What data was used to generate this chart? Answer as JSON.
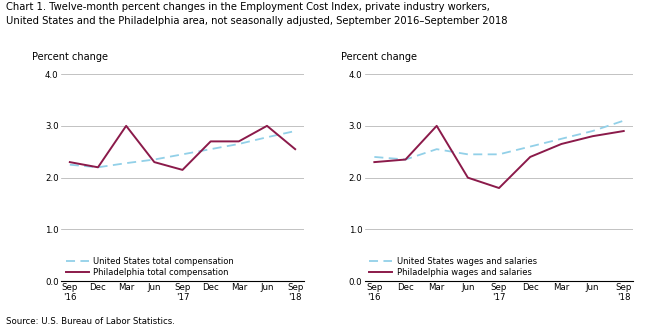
{
  "title_line1": "Chart 1. Twelve-month percent changes in the Employment Cost Index, private industry workers,",
  "title_line2": "United States and the Philadelphia area, not seasonally adjusted, September 2016–September 2018",
  "source": "Source: U.S. Bureau of Labor Statistics.",
  "ylabel": "Percent change",
  "xlabels": [
    "Sep\n'16",
    "Dec",
    "Mar",
    "Jun",
    "Sep\n'17",
    "Dec",
    "Mar",
    "Jun",
    "Sep\n'18"
  ],
  "ylim": [
    0.0,
    4.0
  ],
  "yticks": [
    0.0,
    1.0,
    2.0,
    3.0,
    4.0
  ],
  "left_panel": {
    "us_total_comp": [
      2.25,
      2.2,
      2.28,
      2.35,
      2.45,
      2.55,
      2.65,
      2.78,
      2.9
    ],
    "phila_total_comp": [
      2.3,
      2.2,
      3.0,
      2.3,
      2.15,
      2.7,
      2.7,
      3.0,
      2.55
    ],
    "us_label": "United States total compensation",
    "phila_label": "Philadelphia total compensation"
  },
  "right_panel": {
    "us_wages_salaries": [
      2.4,
      2.35,
      2.55,
      2.45,
      2.45,
      2.6,
      2.75,
      2.9,
      3.1
    ],
    "phila_wages_salaries": [
      2.3,
      2.35,
      3.0,
      2.0,
      1.8,
      2.4,
      2.65,
      2.8,
      2.9
    ],
    "us_label": "United States wages and salaries",
    "phila_label": "Philadelphia wages and salaries"
  },
  "us_color": "#92D0E8",
  "phila_color": "#8B1A4A",
  "grid_color": "#aaaaaa",
  "background_color": "#ffffff"
}
